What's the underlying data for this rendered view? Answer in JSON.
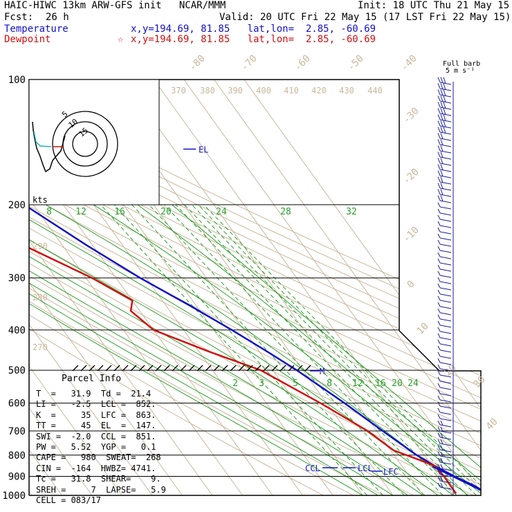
{
  "header": {
    "title": "HAIC-HIWC 13km ARW-GFS init   NCAR/MMM",
    "init": "Init: 18 UTC Thu 21 May 15",
    "fcst_label": "Fcst:",
    "fcst_value": "26 h",
    "valid": "Valid: 20 UTC Fri 22 May 15 (17 LST Fri 22 May 15)",
    "temp_label": "Temperature",
    "temp_loc": "x,y=194.69, 81.85   lat,lon=  2.85, -60.69",
    "dew_label": "Dewpoint",
    "dew_star": "☆",
    "dew_loc": "x,y=194.69, 81.85   lat,lon=  2.85, -60.69"
  },
  "barb_title": [
    "Full barb",
    "5 m s⁻¹"
  ],
  "hodograph": {
    "unit_label": "kts",
    "ring_labels": [
      "15",
      "10",
      "5"
    ]
  },
  "parcel": {
    "title": "Parcel Info",
    "rows": [
      "T  =   31.9  Td =  21.4",
      "LI =   -2.5  LCL =  852.",
      "K  =     35  LFC =  863.",
      "TT =     45  EL  =  147.",
      "SWI =  -2.0  CCL =  851.",
      "PW =   5.52  YGP =   0.1",
      "CAPE =   980  SWEAT=  268",
      "CIN =  -164  HWBZ= 4741.",
      "Tc =   31.8  SHEAR=    9.",
      "SREH =     7  LAPSE=   5.9",
      "CELL = 083/17"
    ]
  },
  "chart_data": {
    "type": "line",
    "plot": "skew-T log-p",
    "y_axis": {
      "label": "pressure (hPa)",
      "scale": "log",
      "reversed": true,
      "ticks": [
        100,
        200,
        300,
        400,
        500,
        600,
        700,
        800,
        900,
        1000
      ]
    },
    "temperature_ticks": [
      "-80",
      "-70",
      "-60",
      "-50",
      "-40",
      "-30",
      "-20",
      "-10",
      "0",
      "10",
      "20",
      "30",
      "40"
    ],
    "theta_labels_top": [
      "370",
      "380",
      "390",
      "400",
      "410",
      "420",
      "430",
      "440"
    ],
    "theta_labels_left": [
      "290",
      "280",
      "270"
    ],
    "mixing_ratio_upper": [
      "8",
      "12",
      "16",
      "20",
      "24",
      "28",
      "32"
    ],
    "mixing_ratio_lower": [
      "2",
      "3",
      "5",
      "8",
      "12",
      "16",
      "20",
      "24"
    ],
    "level_labels": {
      "el": "EL",
      "ccl": "CCL",
      "lcl": "LCL",
      "lfc": "LFC",
      "melting": "M"
    },
    "series": [
      {
        "name": "Temperature",
        "color": "#1010c8",
        "points": [
          [
            100,
            -79
          ],
          [
            120,
            -77
          ],
          [
            150,
            -65
          ],
          [
            180,
            -58
          ],
          [
            200,
            -53
          ],
          [
            250,
            -42
          ],
          [
            300,
            -32
          ],
          [
            350,
            -22
          ],
          [
            400,
            -14
          ],
          [
            450,
            -7.5
          ],
          [
            500,
            -2
          ],
          [
            600,
            6
          ],
          [
            700,
            12
          ],
          [
            800,
            17.5
          ],
          [
            850,
            21
          ],
          [
            900,
            25
          ],
          [
            950,
            29.5
          ],
          [
            990,
            31.9
          ]
        ]
      },
      {
        "name": "Dewpoint",
        "color": "#d01010",
        "points": [
          [
            100,
            -89
          ],
          [
            130,
            -91
          ],
          [
            160,
            -92
          ],
          [
            185,
            -87
          ],
          [
            200,
            -80
          ],
          [
            250,
            -63
          ],
          [
            300,
            -48
          ],
          [
            340,
            -40
          ],
          [
            360,
            -43
          ],
          [
            400,
            -40
          ],
          [
            450,
            -27
          ],
          [
            500,
            -14
          ],
          [
            600,
            -2
          ],
          [
            700,
            7
          ],
          [
            780,
            11
          ],
          [
            820,
            17
          ],
          [
            850,
            21
          ],
          [
            900,
            21.5
          ],
          [
            990,
            21.4
          ]
        ]
      }
    ]
  }
}
